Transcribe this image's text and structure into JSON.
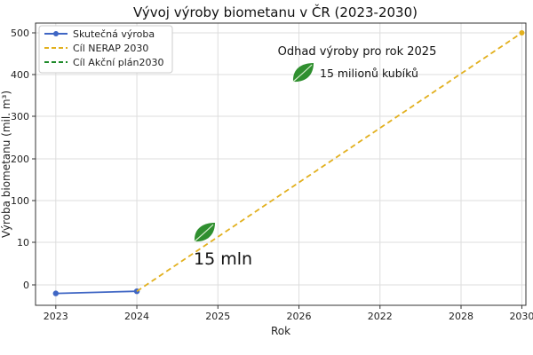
{
  "chart_data": {
    "type": "line",
    "title": "Vývoj výroby biometanu v ČR (2023-2030)",
    "xlabel": "Rok",
    "ylabel": "Výroba biometanu (mil. m³)",
    "x_tick_labels": [
      "2023",
      "2024",
      "2025",
      "2026",
      "2022",
      "2028",
      "2030"
    ],
    "y_tick_labels": [
      "0",
      "10",
      "100",
      "200",
      "300",
      "400",
      "500"
    ],
    "y_tick_values": [
      0,
      10,
      100,
      200,
      300,
      400,
      500
    ],
    "xlim": [
      -0.25,
      5.8
    ],
    "grid": true,
    "legend_placement": "top-left",
    "series": [
      {
        "name": "Skutečná výroba",
        "color": "#3f66c4",
        "style": "solid-with-markers",
        "x": [
          0,
          1
        ],
        "y": [
          -2,
          -1.5
        ]
      },
      {
        "name": "Cíl NERAP 2030",
        "color": "#e2b01e",
        "style": "dashed",
        "x": [
          1,
          5.75
        ],
        "y": [
          -1.5,
          500
        ]
      },
      {
        "name": "Cíl Akční plán2030",
        "color": "#1e8a2a",
        "style": "dashed",
        "x": [],
        "y": []
      }
    ],
    "annotations": {
      "box_title": "Odhad výroby pro rok 2025",
      "box_text": "15 milionů kubíků",
      "point_label": "15 mln",
      "icon": "leaf-icon",
      "icon_color": "#2f8f2f"
    }
  }
}
